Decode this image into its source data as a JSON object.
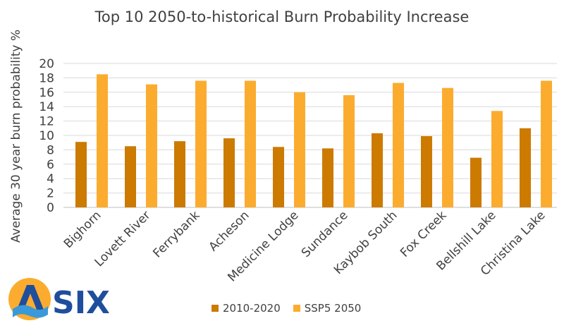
{
  "chart_data": {
    "type": "bar",
    "title": "Top 10 2050-to-historical Burn Probability Increase",
    "ylabel": "Average 30 year burn probability %",
    "xlabel": "",
    "ylim": [
      0,
      20
    ],
    "yticks": [
      0,
      2,
      4,
      6,
      8,
      10,
      12,
      14,
      16,
      18,
      20
    ],
    "grid": true,
    "legend_position": "bottom",
    "categories": [
      "Bighorn",
      "Lovett River",
      "Ferrybank",
      "Acheson",
      "Medicine Lodge",
      "Sundance",
      "Kaybob South",
      "Fox Creek",
      "Bellshill Lake",
      "Christina Lake"
    ],
    "series": [
      {
        "name": "2010-2020",
        "color": "#cc7a00",
        "values": [
          9.1,
          8.5,
          9.2,
          9.6,
          8.4,
          8.2,
          10.3,
          9.9,
          6.9,
          11.0
        ]
      },
      {
        "name": "SSP5 2050",
        "color": "#fbac2f",
        "values": [
          18.5,
          17.1,
          17.6,
          17.6,
          16.0,
          15.6,
          17.3,
          16.6,
          13.4,
          17.6
        ]
      }
    ]
  },
  "logo": {
    "text": "SIX",
    "color": "#1f4e9c"
  }
}
